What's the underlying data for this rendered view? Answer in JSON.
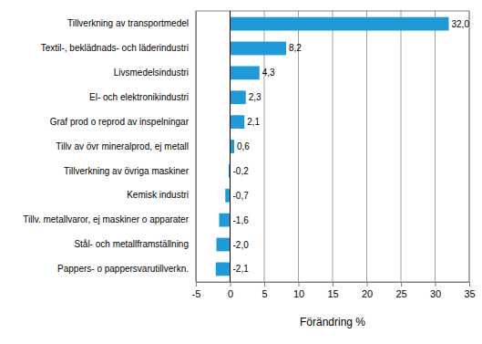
{
  "chart_data": {
    "type": "bar",
    "orientation": "horizontal",
    "categories": [
      "Tillverkning av transportmedel",
      "Textil-, beklädnads- och läderindustri",
      "Livsmedelsindustri",
      "El- och elektronikindustri",
      "Graf prod o reprod av inspelningar",
      "Tillv av övr mineralprod, ej metall",
      "Tillverkning av övriga maskiner",
      "Kemisk industri",
      "Tillv. metallvaror, ej maskiner o apparater",
      "Stål- och metallframställning",
      "Pappers- o pappersvarutillverkn."
    ],
    "values": [
      32.0,
      8.2,
      4.3,
      2.3,
      2.1,
      0.6,
      -0.2,
      -0.7,
      -1.6,
      -2.0,
      -2.1
    ],
    "value_labels": [
      "32,0",
      "8,2",
      "4,3",
      "2,3",
      "2,1",
      "0,6",
      "-0,2",
      "-0,7",
      "-1,6",
      "-2,0",
      "-2,1"
    ],
    "color": "#1f9ad6",
    "x_label": "Förändring %",
    "xlim": [
      -5,
      35
    ],
    "xticks": [
      -5,
      0,
      5,
      10,
      15,
      20,
      25,
      30,
      35
    ],
    "grid": true,
    "data_labels": true
  }
}
